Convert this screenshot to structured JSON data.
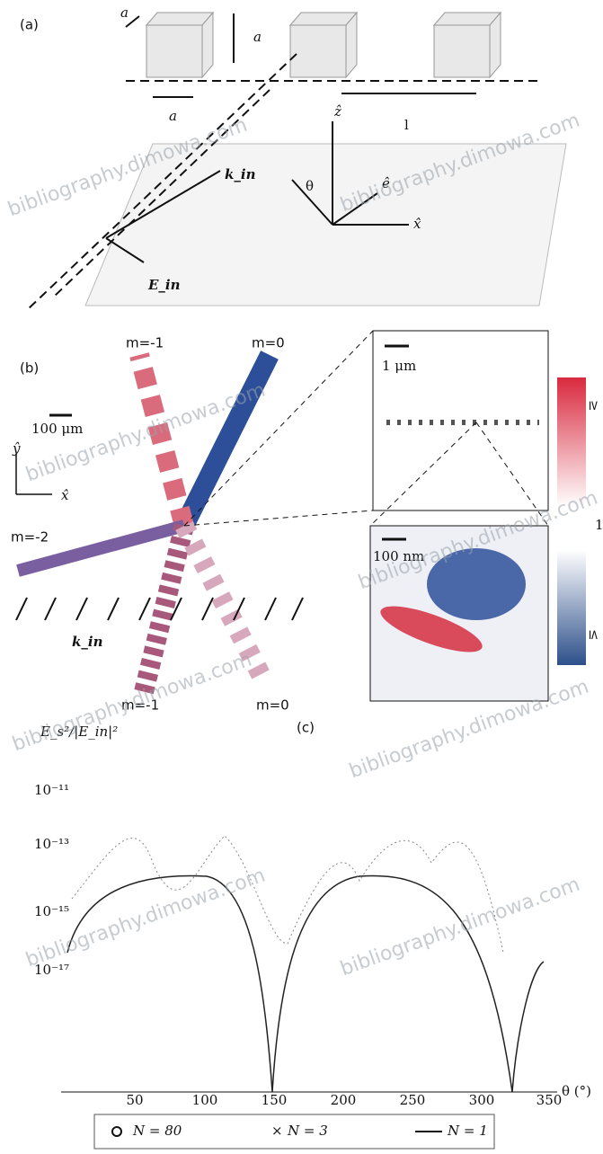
{
  "panel_a": {
    "label": "(a)",
    "cube_side": "a",
    "cube_height": "a",
    "cube_width": "a",
    "spacing": "l",
    "z_axis": "ẑ",
    "x_axis": "x̂",
    "angle": "θ",
    "e_vec": "ê",
    "k_in": "k_in",
    "e_in": "E_in"
  },
  "panel_b": {
    "label": "(b)",
    "orders_top": [
      "m=-1",
      "m=0"
    ],
    "order_left": "m=-2",
    "orders_bottom": [
      "m=-1",
      "m=0"
    ],
    "scale_main": "100 μm",
    "scale_zoom1": "1 μm",
    "scale_zoom2": "100 nm",
    "y_axis": "ŷ",
    "x_axis": "x̂",
    "k_in": "k_in",
    "colorbar_top": "≥",
    "colorbar_mid": "1",
    "colorbar_bottom": "≤"
  },
  "panel_c": {
    "label": "(c)",
    "y_label": "E_s²/|E_in|²",
    "yticks": [
      "10⁻¹¹",
      "10⁻¹³",
      "10⁻¹⁵",
      "10⁻¹⁷"
    ],
    "xticks": [
      "50",
      "100",
      "150",
      "200",
      "250",
      "300",
      "350"
    ],
    "x_label": "θ (°)",
    "legend": [
      "N = 80",
      "N = 3",
      "N = 1"
    ]
  },
  "watermark": "bibliography.dimowa.com"
}
